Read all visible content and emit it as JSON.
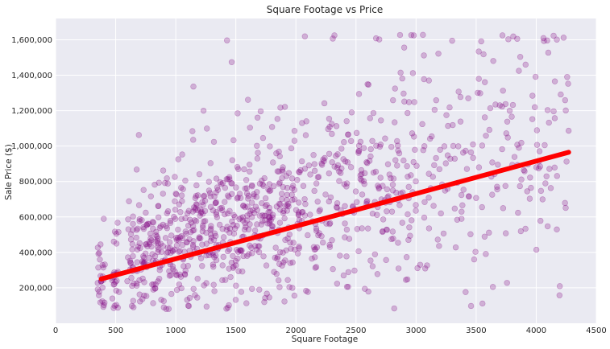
{
  "chart_data": {
    "type": "scatter",
    "title": "Square Footage vs Price",
    "xlabel": "Square Footage",
    "ylabel": "Sale Price ($)",
    "xlim": [
      0,
      4500
    ],
    "ylim": [
      0,
      1720000
    ],
    "x_ticks": [
      0,
      500,
      1000,
      1500,
      2000,
      2500,
      3000,
      3500,
      4000,
      4500
    ],
    "x_tick_labels": [
      "0",
      "500",
      "1000",
      "1500",
      "2000",
      "2500",
      "3000",
      "3500",
      "4000",
      "4500"
    ],
    "y_ticks": [
      200000,
      400000,
      600000,
      800000,
      1000000,
      1200000,
      1400000,
      1600000
    ],
    "y_tick_labels": [
      "200,000",
      "400,000",
      "600,000",
      "800,000",
      "1,000,000",
      "1,200,000",
      "1,400,000",
      "1,600,000"
    ],
    "grid": true,
    "background": "#eaeaf2",
    "point_color": "#800080",
    "point_alpha": 0.25,
    "trend_color": "#ff0000",
    "series": [
      {
        "type": "scatter",
        "x": [
          380,
          500,
          620,
          700,
          760,
          820,
          880,
          940,
          1000,
          1060,
          1120,
          1180,
          1240,
          1300,
          1360,
          1420,
          1480,
          1540,
          1600,
          1660,
          1720,
          1780,
          1840,
          1900,
          1960,
          2020,
          2080,
          2140,
          2200,
          2260,
          2320,
          2380,
          2440,
          2500,
          2560,
          2620,
          2680,
          2740,
          2800,
          2860,
          2920,
          2980,
          3040,
          3100,
          3160,
          3220,
          3280,
          3340,
          3400,
          3460,
          3520,
          3580,
          3640,
          3700,
          3760,
          3820,
          3880,
          3940,
          4000,
          4060,
          4120,
          4180,
          4240
        ],
        "y": [
          270000,
          300000,
          330000,
          360000,
          380000,
          400000,
          410000,
          430000,
          440000,
          450000,
          460000,
          480000,
          490000,
          500000,
          510000,
          520000,
          530000,
          540000,
          550000,
          560000,
          570000,
          580000,
          590000,
          600000,
          610000,
          620000,
          630000,
          640000,
          660000,
          670000,
          680000,
          690000,
          700000,
          710000,
          720000,
          730000,
          740000,
          750000,
          760000,
          770000,
          780000,
          790000,
          800000,
          810000,
          820000,
          830000,
          840000,
          850000,
          860000,
          870000,
          880000,
          890000,
          900000,
          910000,
          920000,
          930000,
          940000,
          950000,
          960000,
          970000,
          980000,
          990000,
          1000000
        ]
      },
      {
        "type": "line",
        "x": [
          380,
          4270
        ],
        "y": [
          250000,
          965000
        ]
      }
    ]
  }
}
